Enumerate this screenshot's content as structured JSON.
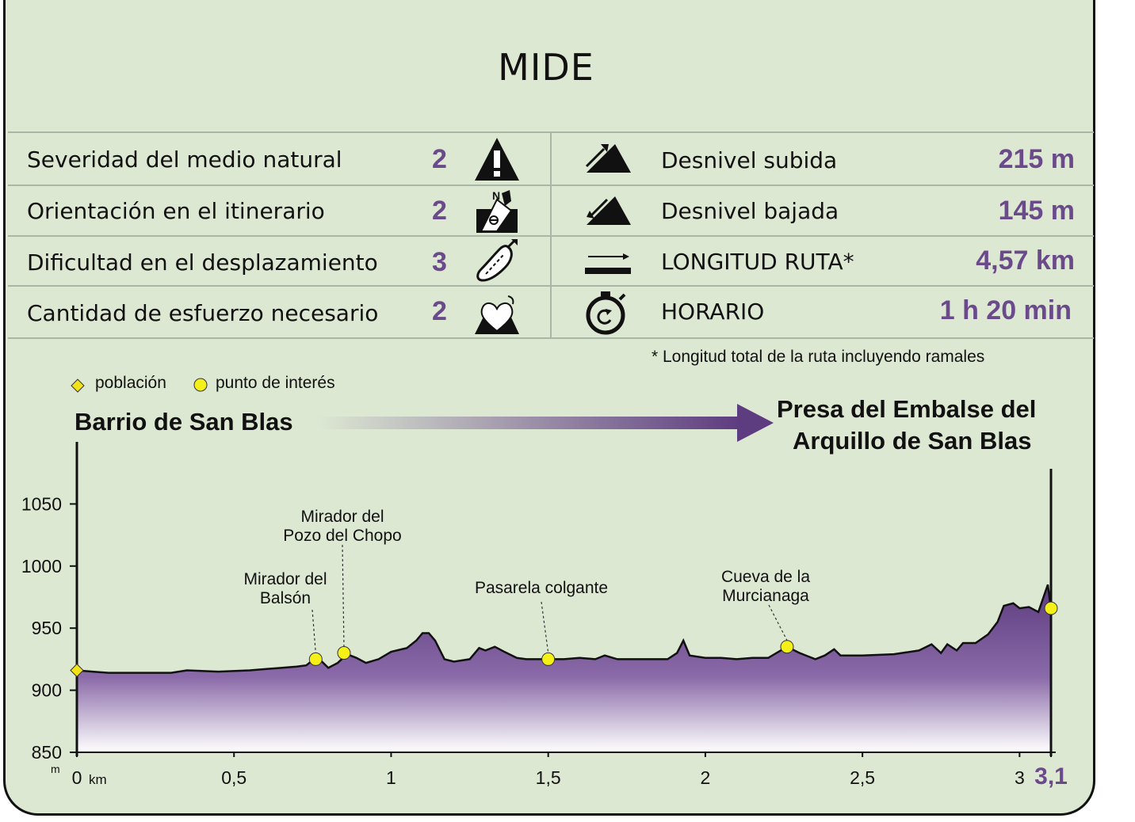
{
  "title": "MIDE",
  "mide": {
    "items": [
      {
        "label": "Severidad del medio natural",
        "value": "2",
        "icon": "warning-triangle-icon"
      },
      {
        "label": "Orientación en el itinerario",
        "value": "2",
        "icon": "compass-orientation-icon"
      },
      {
        "label": "Dificultad en el desplazamiento",
        "value": "3",
        "icon": "footprint-icon"
      },
      {
        "label": "Cantidad de esfuerzo necesario",
        "value": "2",
        "icon": "heart-effort-icon"
      }
    ],
    "stats": [
      {
        "label": "Desnivel subida",
        "value": "215 m",
        "icon": "ascent-icon"
      },
      {
        "label": "Desnivel bajada",
        "value": "145 m",
        "icon": "descent-icon"
      },
      {
        "label": "LONGITUD RUTA*",
        "value": "4,57 km",
        "icon": "distance-icon"
      },
      {
        "label": "HORARIO",
        "value": "1 h 20 min",
        "icon": "stopwatch-icon"
      }
    ],
    "note": "* Longitud total de la ruta incluyendo ramales"
  },
  "legend": {
    "poblacion": "población",
    "interes": "punto de interés"
  },
  "route": {
    "start": "Barrio de San Blas",
    "end_line1": "Presa del Embalse del",
    "end_line2": "Arquillo de San Blas"
  },
  "colors": {
    "background": "#dde8d3",
    "profile": "#5e3c80",
    "accent_text": "#6b4a8c",
    "poi": "#f5f018",
    "town": "#f2e21a"
  },
  "chart_data": {
    "type": "area",
    "title": "",
    "xlabel": "km",
    "ylabel": "m",
    "xlim": [
      0,
      3.1
    ],
    "ylim": [
      850,
      1100
    ],
    "yticks": [
      850,
      900,
      950,
      1000,
      1050
    ],
    "xticks": [
      {
        "value": 0,
        "label": "0"
      },
      {
        "value": 0.5,
        "label": "0,5"
      },
      {
        "value": 1,
        "label": "1"
      },
      {
        "value": 1.5,
        "label": "1,5"
      },
      {
        "value": 2,
        "label": "2"
      },
      {
        "value": 2.5,
        "label": "2,5"
      },
      {
        "value": 3,
        "label": "3"
      },
      {
        "value": 3.1,
        "label": "3,1"
      }
    ],
    "series": [
      {
        "x": [
          0,
          0.05,
          0.1,
          0.2,
          0.3,
          0.35,
          0.45,
          0.55,
          0.6,
          0.65,
          0.7,
          0.73,
          0.76,
          0.78,
          0.8,
          0.83,
          0.86,
          0.89,
          0.92,
          0.96,
          1.0,
          1.05,
          1.08,
          1.1,
          1.12,
          1.14,
          1.17,
          1.2,
          1.25,
          1.28,
          1.3,
          1.33,
          1.36,
          1.4,
          1.43,
          1.5,
          1.55,
          1.6,
          1.65,
          1.68,
          1.72,
          1.8,
          1.88,
          1.91,
          1.93,
          1.95,
          2.0,
          2.05,
          2.1,
          2.15,
          2.2,
          2.26,
          2.3,
          2.35,
          2.38,
          2.41,
          2.43,
          2.5,
          2.6,
          2.68,
          2.72,
          2.75,
          2.77,
          2.8,
          2.82,
          2.86,
          2.9,
          2.93,
          2.95,
          2.98,
          3.0,
          3.03,
          3.06,
          3.09,
          3.1
        ],
        "y": [
          916,
          915,
          914,
          914,
          914,
          916,
          915,
          916,
          917,
          918,
          919,
          920,
          926,
          923,
          918,
          922,
          929,
          926,
          922,
          925,
          931,
          934,
          940,
          946,
          946,
          940,
          925,
          923,
          925,
          934,
          932,
          935,
          931,
          926,
          925,
          925,
          925,
          926,
          925,
          928,
          925,
          925,
          925,
          930,
          940,
          928,
          926,
          926,
          925,
          926,
          926,
          935,
          930,
          925,
          928,
          933,
          928,
          928,
          929,
          932,
          937,
          930,
          937,
          932,
          938,
          938,
          945,
          955,
          968,
          970,
          966,
          967,
          963,
          985,
          965
        ]
      }
    ],
    "points": [
      {
        "type": "población",
        "x": 0,
        "y": 916,
        "label": ""
      },
      {
        "type": "punto de interés",
        "x": 0.76,
        "y": 925,
        "label": "Mirador del Balsón"
      },
      {
        "type": "punto de interés",
        "x": 0.85,
        "y": 930,
        "label": "Mirador del Pozo del Chopo"
      },
      {
        "type": "punto de interés",
        "x": 1.5,
        "y": 925,
        "label": "Pasarela colgante"
      },
      {
        "type": "punto de interés",
        "x": 2.26,
        "y": 935,
        "label": "Cueva de la Murcianaga"
      },
      {
        "type": "punto de interés",
        "x": 3.1,
        "y": 966,
        "label": ""
      }
    ],
    "annotations": [
      {
        "lines": [
          "Mirador del",
          "Balsón"
        ]
      },
      {
        "lines": [
          "Mirador del",
          "Pozo del Chopo"
        ]
      },
      {
        "lines": [
          "Pasarela colgante"
        ]
      },
      {
        "lines": [
          "Cueva de la",
          "Murcianaga"
        ]
      }
    ]
  }
}
